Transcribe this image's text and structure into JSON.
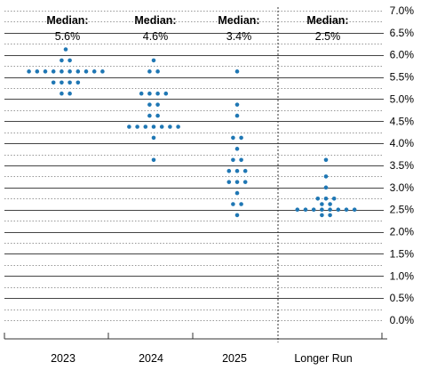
{
  "chart_data": {
    "type": "scatter",
    "subtype": "dot-plot",
    "title": "",
    "xlabel": "",
    "ylabel": "",
    "ylim": [
      0,
      7.0
    ],
    "y_tick_step": 0.25,
    "y_tick_labels": [
      "0.0%",
      "0.5%",
      "1.0%",
      "1.5%",
      "2.0%",
      "2.5%",
      "3.0%",
      "3.5%",
      "4.0%",
      "4.5%",
      "5.0%",
      "5.5%",
      "6.0%",
      "6.5%",
      "7.0%"
    ],
    "y_axis_position": "right",
    "grid": "horizontal dotted at quarter points, solid at half points",
    "dot_color": "#1f77b4",
    "categories": [
      "2023",
      "2024",
      "2025",
      "Longer Run"
    ],
    "median_title": "Median:",
    "medians": [
      "5.6%",
      "4.6%",
      "3.4%",
      "2.5%"
    ],
    "series": [
      {
        "category": "2023",
        "points": [
          {
            "y": 6.125,
            "n": 1
          },
          {
            "y": 5.875,
            "n": 2
          },
          {
            "y": 5.625,
            "n": 10
          },
          {
            "y": 5.375,
            "n": 4
          },
          {
            "y": 5.125,
            "n": 2
          }
        ]
      },
      {
        "category": "2024",
        "points": [
          {
            "y": 5.875,
            "n": 1
          },
          {
            "y": 5.625,
            "n": 2
          },
          {
            "y": 5.125,
            "n": 4
          },
          {
            "y": 4.875,
            "n": 2
          },
          {
            "y": 4.625,
            "n": 2
          },
          {
            "y": 4.375,
            "n": 7
          },
          {
            "y": 4.125,
            "n": 1
          },
          {
            "y": 3.625,
            "n": 1
          }
        ]
      },
      {
        "category": "2025",
        "points": [
          {
            "y": 5.625,
            "n": 1
          },
          {
            "y": 4.875,
            "n": 1
          },
          {
            "y": 4.625,
            "n": 1
          },
          {
            "y": 4.125,
            "n": 2
          },
          {
            "y": 3.875,
            "n": 1
          },
          {
            "y": 3.625,
            "n": 2
          },
          {
            "y": 3.375,
            "n": 3
          },
          {
            "y": 3.125,
            "n": 3
          },
          {
            "y": 2.875,
            "n": 1
          },
          {
            "y": 2.625,
            "n": 2
          },
          {
            "y": 2.375,
            "n": 1
          }
        ]
      },
      {
        "category": "Longer Run",
        "points": [
          {
            "y": 3.625,
            "n": 1
          },
          {
            "y": 3.25,
            "n": 1
          },
          {
            "y": 3.0,
            "n": 1
          },
          {
            "y": 2.75,
            "n": 3
          },
          {
            "y": 2.625,
            "n": 2
          },
          {
            "y": 2.5,
            "n": 8
          },
          {
            "y": 2.375,
            "n": 2
          }
        ]
      }
    ]
  }
}
